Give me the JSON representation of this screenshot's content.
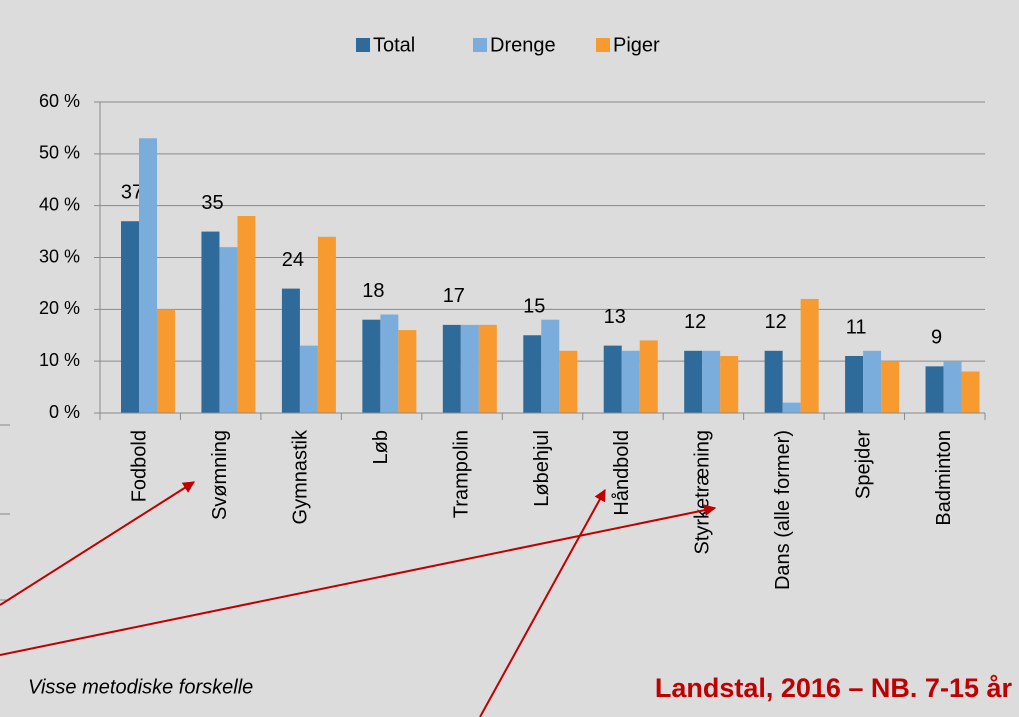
{
  "chart_data": {
    "type": "bar",
    "categories": [
      "Fodbold",
      "Svømning",
      "Gymnastik",
      "Løb",
      "Trampolin",
      "Løbehjul",
      "Håndbold",
      "Styrketræning",
      "Dans (alle former)",
      "Spejder",
      "Badminton"
    ],
    "series": [
      {
        "name": "Total",
        "color": "#2f6b9a",
        "values": [
          37,
          35,
          24,
          18,
          17,
          15,
          13,
          12,
          12,
          11,
          9
        ]
      },
      {
        "name": "Drenge",
        "color": "#7aaddc",
        "values": [
          53,
          32,
          13,
          19,
          17,
          18,
          12,
          12,
          2,
          12,
          10
        ]
      },
      {
        "name": "Piger",
        "color": "#f79a2f",
        "values": [
          20,
          38,
          34,
          16,
          17,
          12,
          14,
          11,
          22,
          10,
          8
        ]
      }
    ],
    "ylim": [
      0,
      60
    ],
    "yticks": [
      {
        "value": 0,
        "label": "0 %"
      },
      {
        "value": 10,
        "label": "10 %"
      },
      {
        "value": 20,
        "label": "20 %"
      },
      {
        "value": 30,
        "label": "30 %"
      },
      {
        "value": 40,
        "label": "40 %"
      },
      {
        "value": 50,
        "label": "50 %"
      },
      {
        "value": 60,
        "label": "60 %"
      }
    ],
    "grid": true,
    "legend": "top",
    "annotations": [
      "Visse metodiske forskelle",
      "Landstal, 2016 – NB. 7-15 år"
    ]
  }
}
